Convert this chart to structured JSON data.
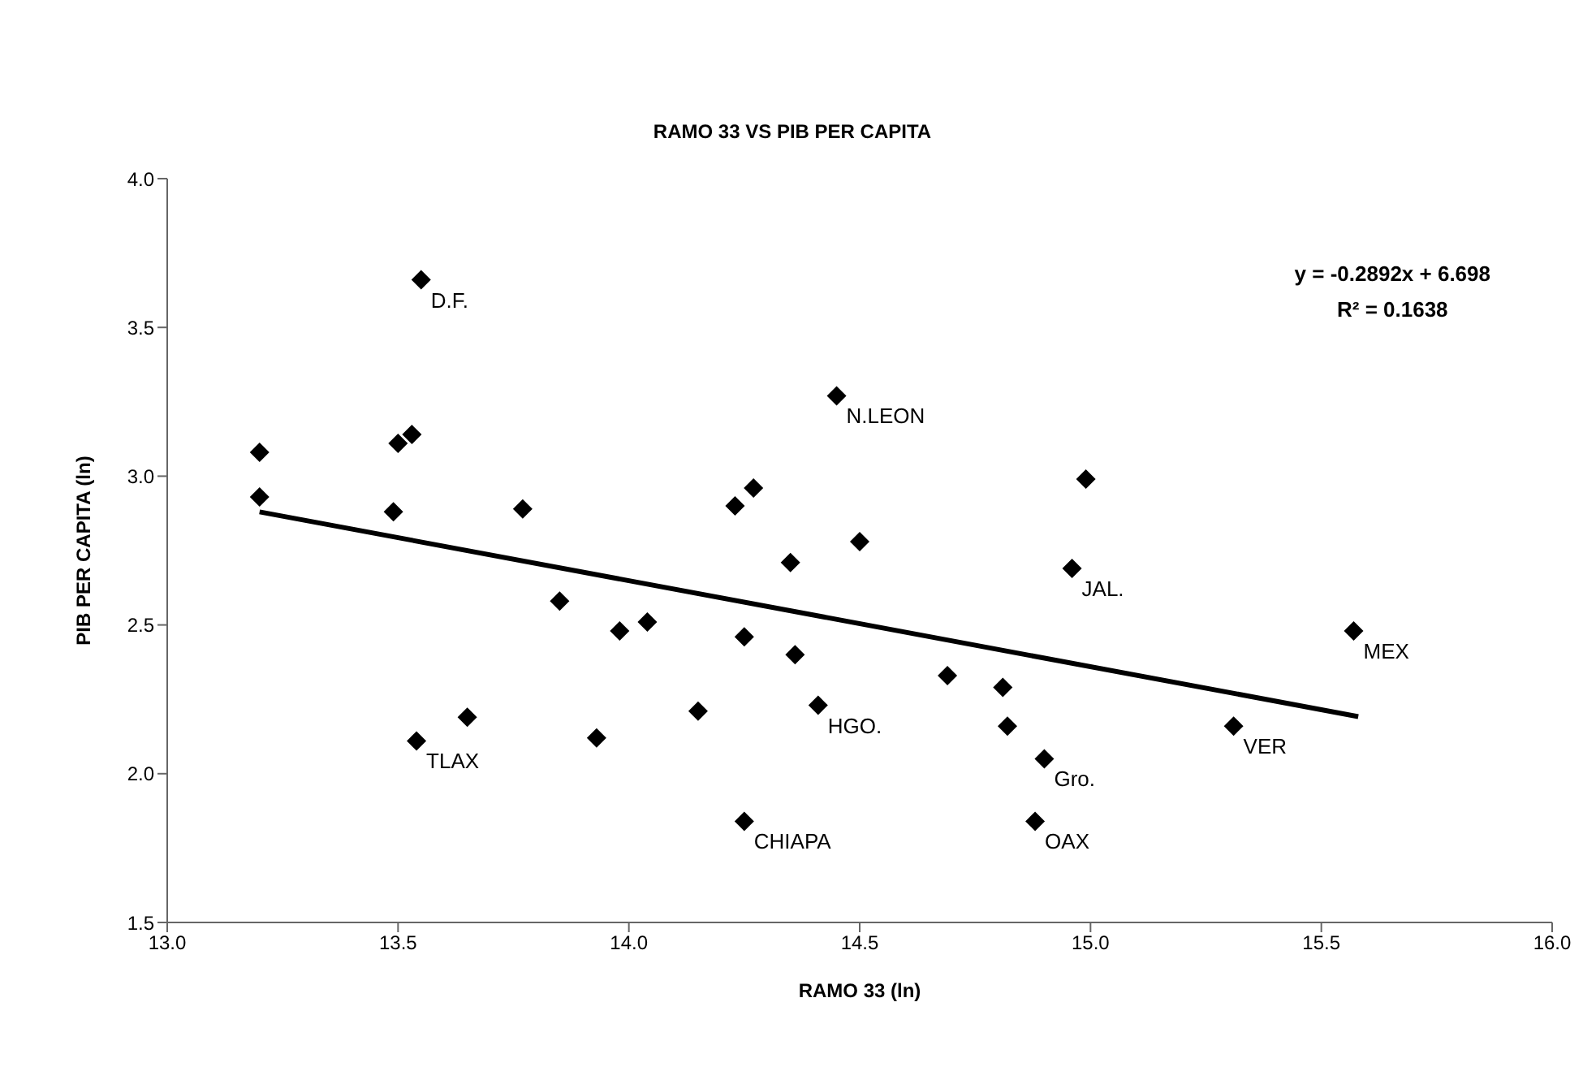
{
  "chart_data": {
    "type": "scatter",
    "title": "RAMO 33 VS PIB PER CAPITA",
    "xlabel": "RAMO 33 (ln)",
    "ylabel": "PIB PER CAPITA (ln)",
    "xlim": [
      13.0,
      16.0
    ],
    "xticks": [
      {
        "value": 13,
        "label": "13.0"
      },
      {
        "value": 13.5,
        "label": "13.5"
      },
      {
        "value": 14,
        "label": "14.0"
      },
      {
        "value": 14.5,
        "label": "14.5"
      },
      {
        "value": 15,
        "label": "15.0"
      },
      {
        "value": 15.5,
        "label": "15.5"
      },
      {
        "value": 16,
        "label": "16.0"
      }
    ],
    "ylim": [
      1.5,
      4.0
    ],
    "yticks": [
      {
        "value": 1.5,
        "label": "1.5"
      },
      {
        "value": 2,
        "label": "2.0"
      },
      {
        "value": 2.5,
        "label": "2.5"
      },
      {
        "value": 3,
        "label": "3.0"
      },
      {
        "value": 3.5,
        "label": "3.5"
      },
      {
        "value": 4,
        "label": "4.0"
      }
    ],
    "grid": false,
    "series": [
      {
        "marker": "diamond",
        "color": "#000000",
        "x": [
          13.2,
          13.2,
          13.55,
          13.5,
          13.53,
          13.49,
          13.77,
          13.85,
          13.98,
          14.04,
          14.23,
          14.27,
          14.25,
          14.35,
          14.36,
          14.41,
          14.45,
          13.54,
          13.65,
          13.93,
          14.15,
          14.25,
          14.5,
          14.99,
          14.96,
          15.57,
          14.69,
          14.81,
          14.82,
          14.9,
          14.88,
          15.31
        ],
        "values": [
          3.08,
          2.93,
          3.66,
          3.11,
          3.14,
          2.88,
          2.89,
          2.58,
          2.48,
          2.51,
          2.9,
          2.96,
          2.46,
          2.71,
          2.4,
          2.23,
          3.27,
          2.11,
          2.19,
          2.12,
          2.21,
          1.84,
          2.78,
          2.99,
          2.69,
          2.48,
          2.33,
          2.29,
          2.16,
          2.05,
          1.84,
          2.16
        ]
      },
      {
        "type": "line",
        "marker": "none",
        "color": "#000000",
        "x": [
          13.2,
          15.58
        ],
        "values": [
          2.88,
          2.192
        ]
      }
    ],
    "annotations": [
      {
        "text": "D.F.",
        "x": 13.55,
        "y": 3.66
      },
      {
        "text": "N.LEON",
        "x": 14.45,
        "y": 3.27
      },
      {
        "text": "TLAX",
        "x": 13.54,
        "y": 2.11
      },
      {
        "text": "HGO.",
        "x": 14.41,
        "y": 2.23
      },
      {
        "text": "CHIAPA",
        "x": 14.25,
        "y": 1.84
      },
      {
        "text": "JAL.",
        "x": 14.96,
        "y": 2.69
      },
      {
        "text": "MEX",
        "x": 15.57,
        "y": 2.48
      },
      {
        "text": "VER",
        "x": 15.31,
        "y": 2.16
      },
      {
        "text": "Gro.",
        "x": 14.9,
        "y": 2.05
      },
      {
        "text": "OAX",
        "x": 14.88,
        "y": 1.84
      },
      "y = -0.2892x + 6.698",
      "R² = 0.1638"
    ]
  }
}
